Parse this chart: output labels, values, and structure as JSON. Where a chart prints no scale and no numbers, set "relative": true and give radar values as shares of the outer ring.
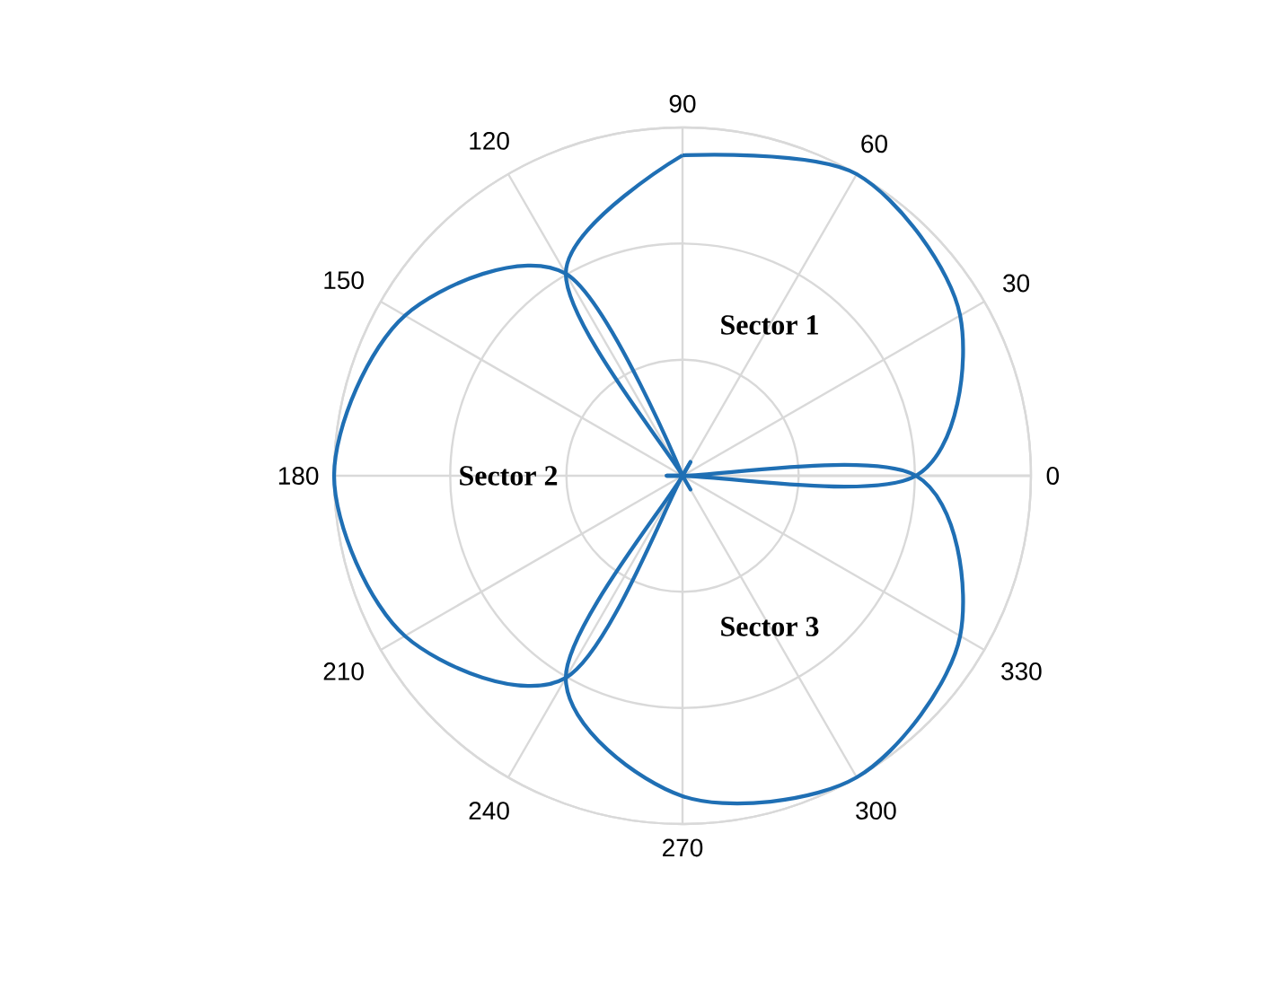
{
  "chart_data": {
    "type": "radar",
    "relative": true,
    "grid": true,
    "line_style": "solid",
    "marker": "none",
    "categories": [
      "90",
      "60",
      "30",
      "0",
      "330",
      "300",
      "270",
      "240",
      "210",
      "180",
      "150",
      "120"
    ],
    "series": [
      {
        "color": "#1f6fb4",
        "values": [
          0.92,
          1,
          0.92,
          0.67,
          0,
          0,
          0,
          0,
          0,
          0,
          0,
          0.67
        ]
      },
      {
        "color": "#1f6fb4",
        "values": [
          0,
          0,
          0,
          0,
          0,
          0,
          0,
          0.67,
          0.92,
          1,
          0.92,
          0.67
        ]
      },
      {
        "color": "#1f6fb4",
        "values": [
          0,
          0,
          0,
          0.67,
          0.92,
          1,
          0.92,
          0.67,
          0,
          0,
          0,
          0
        ]
      }
    ],
    "annotations": [
      "Sector 1",
      "Sector 2",
      "Sector 3"
    ]
  }
}
